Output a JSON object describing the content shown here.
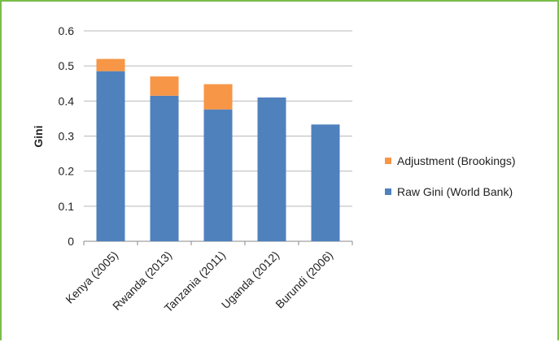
{
  "chart_data": {
    "type": "bar",
    "stacked": true,
    "categories": [
      "Kenya (2005)",
      "Rwanda (2013)",
      "Tanzania (2011)",
      "Uganda (2012)",
      "Burundi (2006)"
    ],
    "series": [
      {
        "name": "Raw Gini (World Bank)",
        "values": [
          0.485,
          0.415,
          0.376,
          0.41,
          0.333
        ],
        "color": "#4f81bd"
      },
      {
        "name": "Adjustment (Brookings)",
        "values": [
          0.035,
          0.055,
          0.072,
          0.0,
          0.0
        ],
        "color": "#f79646"
      }
    ],
    "ylabel": "Gini",
    "xlabel": "",
    "ylim": [
      0,
      0.6
    ],
    "yticks": [
      "0",
      "0.1",
      "0.2",
      "0.3",
      "0.4",
      "0.5",
      "0.6"
    ],
    "grid": true,
    "legend_position": "right"
  },
  "frame_color": "#79bd4a"
}
